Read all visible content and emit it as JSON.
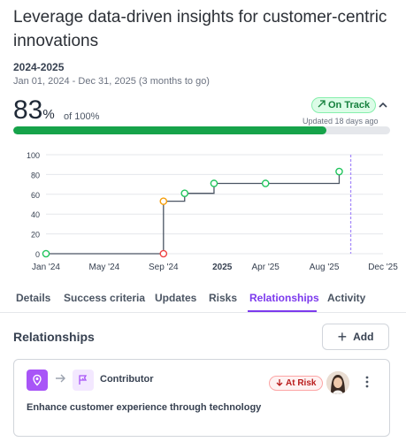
{
  "header": {
    "title": "Leverage data-driven insights for customer-centric innovations",
    "period": "2024-2025",
    "date_range": "Jan 01, 2024 - Dec 31, 2025 (3 months to go)"
  },
  "progress": {
    "value": "83",
    "unit": "%",
    "of": "of 100%",
    "fraction": 0.83,
    "status_label": "On Track",
    "updated": "Updated 18 days ago",
    "fill_color": "#16a34a"
  },
  "chart_data": {
    "type": "line",
    "ylim": [
      0,
      100
    ],
    "y_ticks": [
      "100",
      "80",
      "60",
      "40",
      "20",
      "0"
    ],
    "x_ticks": [
      "Jan '24",
      "May '24",
      "Sep '24",
      "2025",
      "Apr '25",
      "Aug '25",
      "Dec '25"
    ],
    "points": [
      {
        "x": "2024-01-01",
        "y": 0,
        "status": "green"
      },
      {
        "x": "2024-09-01",
        "y": 0,
        "status": "red"
      },
      {
        "x": "2024-09-01",
        "y": 53,
        "status": "orange"
      },
      {
        "x": "2024-10-15",
        "y": 61,
        "status": "green"
      },
      {
        "x": "2024-12-15",
        "y": 71,
        "status": "green"
      },
      {
        "x": "2025-04-01",
        "y": 71,
        "status": "green"
      },
      {
        "x": "2025-09-01",
        "y": 83,
        "status": "green"
      }
    ],
    "today_marker": "2025-09-25",
    "grid": true
  },
  "tabs": [
    {
      "label": "Details"
    },
    {
      "label": "Success criteria"
    },
    {
      "label": "Updates"
    },
    {
      "label": "Risks"
    },
    {
      "label": "Relationships"
    },
    {
      "label": "Activity"
    }
  ],
  "relationships": {
    "title": "Relationships",
    "add_label": "Add",
    "card": {
      "role": "Contributor",
      "status": "At Risk",
      "text": "Enhance customer experience through technology"
    }
  },
  "colors": {
    "accent": "#7c3aed",
    "on_track": "#15803d",
    "at_risk": "#b91c1c"
  }
}
